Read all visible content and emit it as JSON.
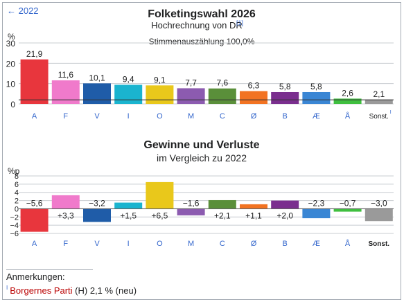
{
  "nav": {
    "prev_label": "← 2022"
  },
  "notes": {
    "title": "Anmerkungen:",
    "marker": "I",
    "party_link": "Borgernes Parti",
    "text": " (H) 2,1 % (neu)"
  },
  "chart_data": [
    {
      "type": "bar",
      "title": "Folketingswahl 2026",
      "subtitle": "Hochrechnung von DR",
      "subtitle_ref": "[1]",
      "caption": "Stimmenauszählung 100,0%",
      "ylabel": "%",
      "ylim": [
        0,
        30
      ],
      "yticks": [
        0,
        10,
        20,
        30
      ],
      "grid": true,
      "categories": [
        "A",
        "F",
        "V",
        "I",
        "O",
        "M",
        "C",
        "Ø",
        "B",
        "Æ",
        "Å",
        "Sonst."
      ],
      "category_marks": [
        "",
        "",
        "",
        "",
        "",
        "",
        "",
        "",
        "",
        "",
        "",
        "I"
      ],
      "values": [
        21.9,
        11.6,
        10.1,
        9.4,
        9.1,
        7.7,
        7.6,
        6.3,
        5.8,
        5.8,
        2.6,
        2.1
      ],
      "value_labels": [
        "21,9",
        "11,6",
        "10,1",
        "9,4",
        "9,1",
        "7,7",
        "7,6",
        "6,3",
        "5,8",
        "5,8",
        "2,6",
        "2,1"
      ],
      "colors": [
        "#e8363d",
        "#f07acb",
        "#1f5ca8",
        "#1ab4cf",
        "#e9c81b",
        "#8c5bb0",
        "#5a8f3a",
        "#f27322",
        "#7a2e8e",
        "#3a86d4",
        "#3fbf3f",
        "#9a9a9a"
      ],
      "threshold": 2
    },
    {
      "type": "bar",
      "title": "Gewinne und Verluste",
      "subtitle": "im Vergleich zu 2022",
      "ylabel": "%p",
      "ylim": [
        -6,
        8
      ],
      "yticks": [
        -6,
        -4,
        -2,
        0,
        2,
        4,
        6,
        8
      ],
      "ytick_labels": [
        "−6",
        "−4",
        "−2",
        "0",
        "2",
        "4",
        "6",
        "8"
      ],
      "grid": true,
      "categories": [
        "A",
        "F",
        "V",
        "I",
        "O",
        "M",
        "C",
        "Ø",
        "B",
        "Æ",
        "Å",
        "Sonst."
      ],
      "values": [
        -5.6,
        3.3,
        -3.2,
        1.5,
        6.5,
        -1.6,
        2.1,
        1.1,
        2.0,
        -2.3,
        -0.7,
        -3.0
      ],
      "value_labels": [
        "−5,6",
        "+3,3",
        "−3,2",
        "+1,5",
        "+6,5",
        "−1,6",
        "+2,1",
        "+1,1",
        "+2,0",
        "−2,3",
        "−0,7",
        "−3,0"
      ],
      "colors": [
        "#e8363d",
        "#f07acb",
        "#1f5ca8",
        "#1ab4cf",
        "#e9c81b",
        "#8c5bb0",
        "#5a8f3a",
        "#f27322",
        "#7a2e8e",
        "#3a86d4",
        "#3fbf3f",
        "#9a9a9a"
      ]
    }
  ]
}
